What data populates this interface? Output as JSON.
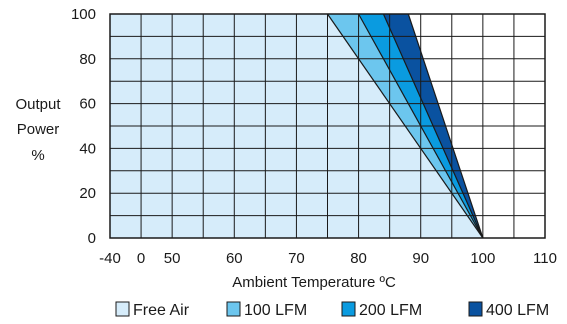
{
  "chart_data": {
    "type": "area",
    "title": "",
    "xlabel": "Ambient Temperature ºC",
    "ylabel_lines": [
      "Output",
      "Power",
      "%"
    ],
    "x_ticks": [
      "-40",
      "0",
      "50",
      "60",
      "70",
      "80",
      "90",
      "100",
      "110"
    ],
    "y_ticks": [
      "0",
      "20",
      "40",
      "60",
      "80",
      "100"
    ],
    "ylim": [
      0,
      100
    ],
    "grid": true,
    "legend_position": "bottom",
    "series": [
      {
        "name": "Free Air",
        "color": "#d6ecfa",
        "points": [
          [
            -40,
            100
          ],
          [
            75,
            100
          ],
          [
            100,
            0
          ]
        ]
      },
      {
        "name": "100 LFM",
        "color": "#6cc6ee",
        "points": [
          [
            -40,
            100
          ],
          [
            80,
            100
          ],
          [
            100,
            0
          ]
        ]
      },
      {
        "name": "200 LFM",
        "color": "#0a9be0",
        "points": [
          [
            -40,
            100
          ],
          [
            84,
            100
          ],
          [
            100,
            0
          ]
        ]
      },
      {
        "name": "400 LFM",
        "color": "#0a52a0",
        "points": [
          [
            -40,
            100
          ],
          [
            88,
            100
          ],
          [
            100,
            0
          ]
        ]
      }
    ]
  }
}
